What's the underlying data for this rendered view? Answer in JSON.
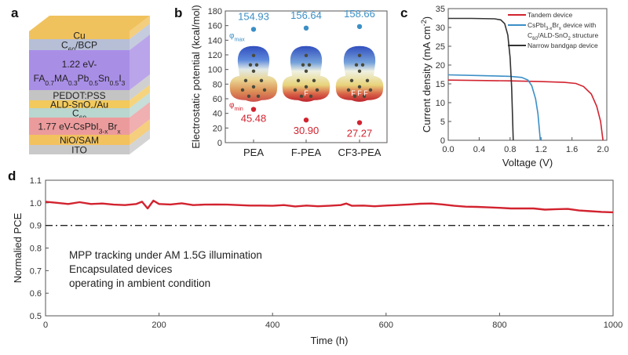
{
  "panel_labels": {
    "a": "a",
    "b": "b",
    "c": "c",
    "d": "d"
  },
  "colors": {
    "red": "#d2232f",
    "blue": "#3b8fc6",
    "black": "#333333"
  },
  "panel_a": {
    "layers": [
      {
        "parts": [
          [
            "Cu",
            ""
          ]
        ],
        "color": "#f0c25e"
      },
      {
        "parts": [
          [
            "C",
            ""
          ],
          [
            "60",
            "sub"
          ],
          [
            "/BCP",
            ""
          ]
        ],
        "color": "#b6bfd6"
      },
      {
        "parts": [
          [
            "1.22 eV-",
            ""
          ]
        ],
        "parts2": [
          [
            "FA",
            ""
          ],
          [
            "0.7",
            "sub"
          ],
          [
            "MA",
            ""
          ],
          [
            "0.3",
            "sub"
          ],
          [
            "Pb",
            ""
          ],
          [
            "0.5",
            "sub"
          ],
          [
            "Sn",
            ""
          ],
          [
            "0.5",
            "sub"
          ],
          [
            "I",
            ""
          ],
          [
            "3",
            "sub"
          ]
        ],
        "color": "#a98ee6"
      },
      {
        "parts": [
          [
            "PEDOT:PSS",
            ""
          ]
        ],
        "color": "#c4c4c4"
      },
      {
        "parts": [
          [
            "ALD-SnO",
            ""
          ],
          [
            "2",
            "sub"
          ],
          [
            "/Au",
            ""
          ]
        ],
        "color": "#f2c95c"
      },
      {
        "parts": [
          [
            "C",
            ""
          ],
          [
            "60",
            "sub"
          ]
        ],
        "color": "#b9d6cf"
      },
      {
        "parts": [
          [
            "1.77 eV-CsPbI",
            ""
          ],
          [
            "3-x",
            "sub"
          ],
          [
            "Br",
            ""
          ],
          [
            "x",
            "sub"
          ]
        ],
        "color": "#ec9b9c"
      },
      {
        "parts": [
          [
            "NiO/SAM",
            ""
          ]
        ],
        "color": "#f2c25e"
      },
      {
        "parts": [
          [
            "ITO",
            ""
          ]
        ],
        "color": "#c9c9c9"
      }
    ]
  },
  "chart_data": [
    {
      "type": "scatter",
      "categories": [
        "PEA",
        "F-PEA",
        "CF3-PEA"
      ],
      "series": [
        {
          "name": "φmax",
          "values": [
            154.93,
            156.64,
            158.66
          ],
          "labels": [
            "154.93",
            "156.64",
            "158.66"
          ],
          "color": "#3b8fc6"
        },
        {
          "name": "φmin",
          "values": [
            45.48,
            30.9,
            27.27
          ],
          "labels": [
            "45.48",
            "30.90",
            "27.27"
          ],
          "color": "#d2232f"
        }
      ],
      "series_label_parts": {
        "max": [
          [
            "φ",
            ""
          ],
          [
            "max",
            "sub"
          ]
        ],
        "min": [
          [
            "φ",
            ""
          ],
          [
            "min",
            "sub"
          ]
        ]
      },
      "molecule_labels": [
        "",
        "F",
        "F F F"
      ],
      "xlabel": "",
      "ylabel": "Electrostatic potential (kcal/mol)",
      "ylim": [
        0,
        180
      ],
      "yticks": [
        0,
        20,
        40,
        60,
        80,
        100,
        120,
        140,
        160,
        180
      ],
      "grid": false
    },
    {
      "type": "line",
      "xlabel": "Voltage (V)",
      "ylabel": "Current density (mA cm-2)",
      "ylabel_parts": [
        [
          "Current density (mA cm",
          ""
        ],
        [
          "-2",
          "sup"
        ],
        [
          ")",
          ""
        ]
      ],
      "xlim": [
        0,
        2.05
      ],
      "ylim": [
        0,
        35
      ],
      "xticks": [
        "0.0",
        "0.4",
        "0.8",
        "1.2",
        "1.6",
        "2.0"
      ],
      "yticks": [
        0,
        5,
        10,
        15,
        20,
        25,
        30,
        35
      ],
      "legend": "top-right",
      "grid": false,
      "series": [
        {
          "name": "Tandem device",
          "legend_parts": [
            [
              "Tandem device",
              ""
            ]
          ],
          "color": "#d2232f",
          "points": [
            [
              0,
              16.0
            ],
            [
              0.4,
              15.9
            ],
            [
              0.8,
              15.8
            ],
            [
              1.2,
              15.6
            ],
            [
              1.5,
              15.4
            ],
            [
              1.65,
              15.1
            ],
            [
              1.75,
              14.3
            ],
            [
              1.85,
              12.3
            ],
            [
              1.92,
              9.0
            ],
            [
              1.97,
              5.0
            ],
            [
              2.0,
              0
            ]
          ]
        },
        {
          "name": "CsPbI3-xBrx device with C60/ALD-SnO2 structure",
          "legend_parts": [
            [
              "CsPbI",
              ""
            ],
            [
              "3-x",
              "sub"
            ],
            [
              "Br",
              ""
            ],
            [
              "x",
              "sub"
            ],
            [
              " device with",
              ""
            ]
          ],
          "legend_parts2": [
            [
              "C",
              ""
            ],
            [
              "60",
              "sub"
            ],
            [
              "/ALD-SnO",
              ""
            ],
            [
              "2",
              "sub"
            ],
            [
              " structure",
              ""
            ]
          ],
          "color": "#3b8fc6",
          "points": [
            [
              0,
              17.4
            ],
            [
              0.4,
              17.2
            ],
            [
              0.8,
              17.0
            ],
            [
              0.95,
              16.7
            ],
            [
              1.03,
              16.0
            ],
            [
              1.08,
              14.5
            ],
            [
              1.13,
              11.0
            ],
            [
              1.16,
              7.0
            ],
            [
              1.19,
              0
            ]
          ]
        },
        {
          "name": "Narrow bandgap device",
          "legend_parts": [
            [
              "Narrow bandgap device",
              ""
            ]
          ],
          "color": "#333333",
          "points": [
            [
              0,
              32.4
            ],
            [
              0.3,
              32.4
            ],
            [
              0.6,
              32.3
            ],
            [
              0.68,
              32.0
            ],
            [
              0.73,
              31.0
            ],
            [
              0.77,
              28.0
            ],
            [
              0.8,
              22.0
            ],
            [
              0.82,
              14.0
            ],
            [
              0.84,
              0
            ]
          ]
        }
      ]
    },
    {
      "type": "line",
      "xlabel": "Time (h)",
      "ylabel": "Normalied PCE",
      "xlim": [
        0,
        1000
      ],
      "ylim": [
        0.5,
        1.1
      ],
      "xticks": [
        0,
        200,
        400,
        600,
        800,
        1000
      ],
      "yticks": [
        "0.5",
        "0.6",
        "0.7",
        "0.8",
        "0.9",
        "1.0",
        "1.1"
      ],
      "reference_line": 0.9,
      "grid": false,
      "annotation": [
        "MPP tracking under AM 1.5G illumination",
        "Encapsulated devices",
        "operating in ambient condition"
      ],
      "series": [
        {
          "color": "#d2232f",
          "x": [
            0,
            20,
            40,
            60,
            80,
            100,
            120,
            140,
            160,
            170,
            180,
            190,
            200,
            220,
            240,
            260,
            280,
            300,
            320,
            340,
            360,
            380,
            400,
            420,
            440,
            460,
            480,
            500,
            520,
            530,
            540,
            560,
            580,
            600,
            620,
            640,
            660,
            680,
            700,
            720,
            740,
            760,
            780,
            800,
            820,
            840,
            860,
            880,
            900,
            920,
            940,
            960,
            980,
            1000
          ],
          "y": [
            1.005,
            1.0,
            0.995,
            1.003,
            0.995,
            0.997,
            0.992,
            0.99,
            0.995,
            1.005,
            0.975,
            1.01,
            0.995,
            0.993,
            0.998,
            0.99,
            0.992,
            0.993,
            0.992,
            0.99,
            0.988,
            0.988,
            0.987,
            0.99,
            0.984,
            0.988,
            0.985,
            0.987,
            0.99,
            0.997,
            0.987,
            0.988,
            0.985,
            0.988,
            0.99,
            0.993,
            0.996,
            0.997,
            0.993,
            0.987,
            0.983,
            0.982,
            0.98,
            0.978,
            0.975,
            0.975,
            0.975,
            0.97,
            0.972,
            0.973,
            0.966,
            0.963,
            0.96,
            0.958
          ]
        }
      ]
    }
  ]
}
